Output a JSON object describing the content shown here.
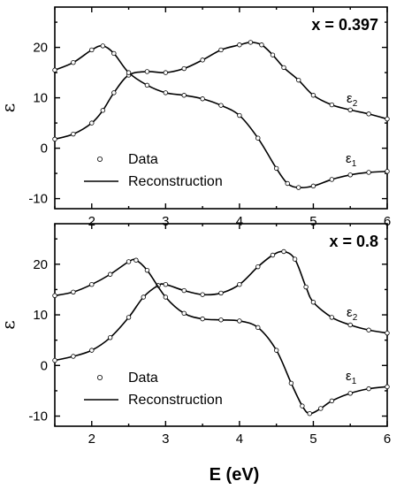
{
  "figure": {
    "xlabel": "E (eV)"
  },
  "chart_data": [
    {
      "type": "line",
      "title": "x = 0.397",
      "xlabel": "E (eV)",
      "ylabel": "ε",
      "xlim": [
        1.5,
        6
      ],
      "ylim": [
        -12,
        28
      ],
      "xticks": [
        "2",
        "3",
        "4",
        "5",
        "6"
      ],
      "yticks": [
        "-10",
        "0",
        "10",
        "20"
      ],
      "grid": false,
      "legend": {
        "position": "bottom-left",
        "data_label": "Data",
        "fit_label": "Reconstruction"
      },
      "series": [
        {
          "name": "ε2",
          "label_main": "ε",
          "label_sub": "2",
          "x": [
            1.5,
            1.75,
            2.0,
            2.15,
            2.3,
            2.5,
            2.75,
            3.0,
            3.25,
            3.5,
            3.75,
            4.0,
            4.15,
            4.3,
            4.45,
            4.6,
            4.8,
            5.0,
            5.25,
            5.5,
            5.75,
            6.0
          ],
          "y": [
            1.8,
            2.8,
            5.0,
            7.5,
            11.0,
            14.5,
            15.2,
            15.0,
            15.8,
            17.5,
            19.5,
            20.5,
            21.0,
            20.5,
            18.5,
            16.0,
            13.5,
            10.5,
            8.6,
            7.6,
            6.8,
            5.8
          ]
        },
        {
          "name": "ε1",
          "label_main": "ε",
          "label_sub": "1",
          "x": [
            1.5,
            1.75,
            2.0,
            2.15,
            2.3,
            2.5,
            2.75,
            3.0,
            3.25,
            3.5,
            3.75,
            4.0,
            4.25,
            4.5,
            4.65,
            4.8,
            5.0,
            5.25,
            5.5,
            5.75,
            6.0
          ],
          "y": [
            15.5,
            17.0,
            19.5,
            20.3,
            18.8,
            15.0,
            12.5,
            11.0,
            10.5,
            9.8,
            8.5,
            6.5,
            2.0,
            -4.0,
            -7.0,
            -7.8,
            -7.5,
            -6.2,
            -5.3,
            -4.8,
            -4.6
          ]
        }
      ]
    },
    {
      "type": "line",
      "title": "x = 0.8",
      "xlabel": "E (eV)",
      "ylabel": "ε",
      "xlim": [
        1.5,
        6
      ],
      "ylim": [
        -12,
        28
      ],
      "xticks": [
        "2",
        "3",
        "4",
        "5",
        "6"
      ],
      "yticks": [
        "-10",
        "0",
        "10",
        "20"
      ],
      "grid": false,
      "legend": {
        "position": "bottom-left",
        "data_label": "Data",
        "fit_label": "Reconstruction"
      },
      "series": [
        {
          "name": "ε2",
          "label_main": "ε",
          "label_sub": "2",
          "x": [
            1.5,
            1.75,
            2.0,
            2.25,
            2.5,
            2.7,
            2.9,
            3.0,
            3.25,
            3.5,
            3.75,
            4.0,
            4.25,
            4.45,
            4.6,
            4.75,
            4.9,
            5.0,
            5.25,
            5.5,
            5.75,
            6.0
          ],
          "y": [
            1.0,
            1.8,
            3.0,
            5.5,
            9.5,
            13.5,
            15.8,
            16.0,
            14.8,
            14.0,
            14.3,
            16.0,
            19.5,
            21.8,
            22.5,
            21.0,
            15.5,
            12.5,
            9.5,
            8.0,
            7.0,
            6.4
          ]
        },
        {
          "name": "ε1",
          "label_main": "ε",
          "label_sub": "1",
          "x": [
            1.5,
            1.75,
            2.0,
            2.25,
            2.5,
            2.6,
            2.75,
            3.0,
            3.25,
            3.5,
            3.75,
            4.0,
            4.25,
            4.5,
            4.7,
            4.85,
            4.95,
            5.1,
            5.25,
            5.5,
            5.75,
            6.0
          ],
          "y": [
            13.8,
            14.5,
            16.0,
            18.0,
            20.5,
            20.8,
            18.8,
            13.5,
            10.3,
            9.2,
            9.0,
            8.8,
            7.5,
            3.0,
            -3.5,
            -8.0,
            -9.5,
            -8.5,
            -7.0,
            -5.5,
            -4.6,
            -4.2
          ]
        }
      ]
    }
  ]
}
